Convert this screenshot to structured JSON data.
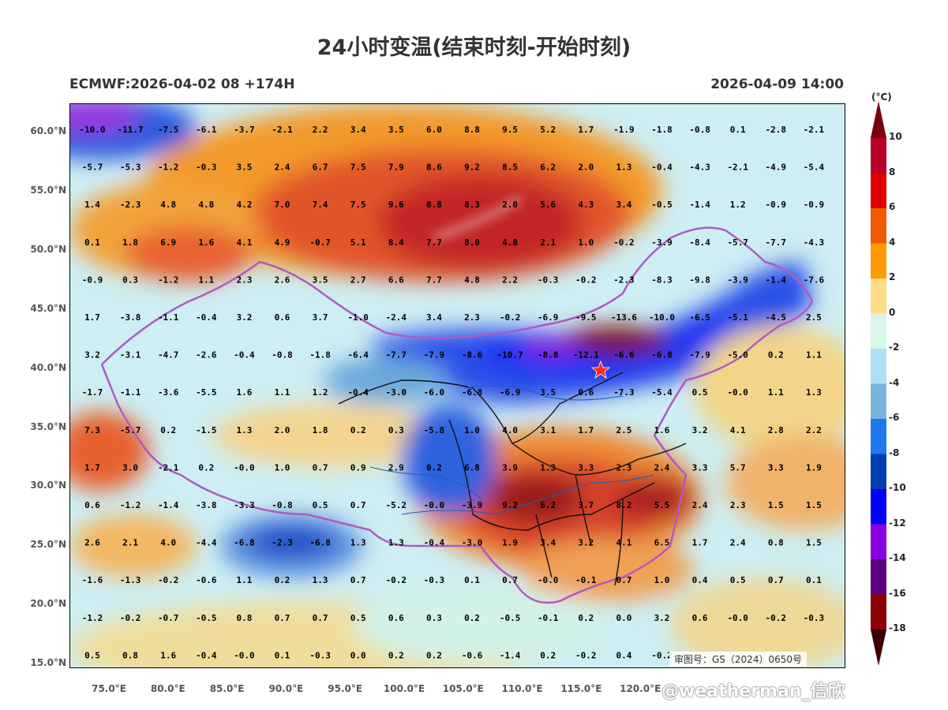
{
  "title": "24小时变温(结束时刻-开始时刻)",
  "subtitle_left": "ECMWF:2026-04-02 08 +174H",
  "subtitle_right": "2026-04-09 14:00",
  "approval_text": "审图号：GS（2024）0650号",
  "watermark": "@weatherman_信欣",
  "lat_labels": [
    "60.0°N",
    "55.0°N",
    "50.0°N",
    "45.0°N",
    "40.0°N",
    "35.0°N",
    "30.0°N",
    "25.0°N",
    "20.0°N",
    "15.0°N"
  ],
  "lon_labels": [
    "75.0°E",
    "80.0°E",
    "85.0°E",
    "90.0°E",
    "95.0°E",
    "100.0°E",
    "105.0°E",
    "110.0°E",
    "115.0°E",
    "120.0°E"
  ],
  "colorbar": {
    "unit": "(°C)",
    "ticks": [
      "10",
      "8",
      "6",
      "4",
      "2",
      "0",
      "-2",
      "-4",
      "-6",
      "-8",
      "-10",
      "-12",
      "-14",
      "-16",
      "-18"
    ],
    "colors": [
      "#b8002a",
      "#e00000",
      "#f05a00",
      "#ff9a00",
      "#ffdd88",
      "#d8f7ea",
      "#aee0f5",
      "#78b4de",
      "#1e78f0",
      "#0040b0",
      "#0000ff",
      "#8a00e0",
      "#5a0080",
      "#8c0000"
    ]
  },
  "grid_values": [
    [
      "-10.0",
      "-11.7",
      "-7.5",
      "-6.1",
      "-3.7",
      "-2.1",
      "2.2",
      "3.4",
      "3.5",
      "6.0",
      "8.8",
      "9.5",
      "5.2",
      "1.7",
      "-1.9",
      "-1.8",
      "-0.8",
      "0.1",
      "-2.8",
      "-2.1"
    ],
    [
      "-5.7",
      "-5.3",
      "-1.2",
      "-0.3",
      "3.5",
      "2.4",
      "6.7",
      "7.5",
      "7.9",
      "8.6",
      "9.2",
      "8.5",
      "6.2",
      "2.0",
      "1.3",
      "-0.4",
      "-4.3",
      "-2.1",
      "-4.9",
      "-5.4"
    ],
    [
      "1.4",
      "-2.3",
      "4.8",
      "4.8",
      "4.2",
      "7.0",
      "7.4",
      "7.5",
      "9.6",
      "8.8",
      "8.3",
      "2.0",
      "5.6",
      "4.3",
      "3.4",
      "-0.5",
      "-1.4",
      "1.2",
      "-0.9",
      "-0.9"
    ],
    [
      "0.1",
      "1.8",
      "6.9",
      "1.6",
      "4.1",
      "4.9",
      "-0.7",
      "5.1",
      "8.4",
      "7.7",
      "8.0",
      "4.8",
      "2.1",
      "1.0",
      "-0.2",
      "-3.9",
      "-8.4",
      "-5.7",
      "-7.7",
      "-4.3"
    ],
    [
      "-0.9",
      "0.3",
      "-1.2",
      "1.1",
      "2.3",
      "2.6",
      "3.5",
      "2.7",
      "6.6",
      "7.7",
      "4.8",
      "2.2",
      "-0.3",
      "-0.2",
      "-2.3",
      "-8.3",
      "-9.8",
      "-3.9",
      "-1.4",
      "-7.6"
    ],
    [
      "1.7",
      "-3.8",
      "-1.1",
      "-0.4",
      "3.2",
      "0.6",
      "3.7",
      "-1.0",
      "-2.4",
      "3.4",
      "2.3",
      "-0.2",
      "-6.9",
      "-9.5",
      "-13.6",
      "-10.0",
      "-6.5",
      "-5.1",
      "-4.5",
      "2.5"
    ],
    [
      "3.2",
      "-3.1",
      "-4.7",
      "-2.6",
      "-0.4",
      "-0.8",
      "-1.8",
      "-6.4",
      "-7.7",
      "-7.9",
      "-8.6",
      "-10.7",
      "-8.8",
      "-12.1",
      "-6.6",
      "-6.8",
      "-7.9",
      "-5.0",
      "0.2",
      "1.1"
    ],
    [
      "-1.7",
      "-1.1",
      "-3.6",
      "-5.5",
      "1.6",
      "1.1",
      "1.2",
      "-0.4",
      "-3.0",
      "-6.0",
      "-6.8",
      "-6.9",
      "3.5",
      "0.6",
      "-7.3",
      "-5.4",
      "0.5",
      "-0.0",
      "1.1",
      "1.3"
    ],
    [
      "7.3",
      "-5.7",
      "0.2",
      "-1.5",
      "1.3",
      "2.0",
      "1.8",
      "0.2",
      "0.3",
      "-5.8",
      "1.0",
      "4.0",
      "3.1",
      "1.7",
      "2.5",
      "1.6",
      "3.2",
      "4.1",
      "2.8",
      "2.2"
    ],
    [
      "1.7",
      "3.0",
      "-2.1",
      "0.2",
      "-0.0",
      "1.0",
      "0.7",
      "0.9",
      "2.9",
      "0.2",
      "6.8",
      "3.9",
      "1.3",
      "3.3",
      "2.3",
      "2.4",
      "3.3",
      "5.7",
      "3.3",
      "1.9"
    ],
    [
      "0.6",
      "-1.2",
      "-1.4",
      "-3.8",
      "-3.3",
      "-0.8",
      "0.5",
      "0.7",
      "-5.2",
      "-0.0",
      "-3.9",
      "9.2",
      "6.2",
      "3.7",
      "8.2",
      "5.5",
      "2.4",
      "2.3",
      "1.5",
      "1.5"
    ],
    [
      "2.6",
      "2.1",
      "4.0",
      "-4.4",
      "-6.8",
      "-2.3",
      "-6.8",
      "1.3",
      "1.3",
      "-0.4",
      "-3.0",
      "1.9",
      "3.4",
      "3.2",
      "4.1",
      "6.5",
      "1.7",
      "2.4",
      "0.8",
      "1.5"
    ],
    [
      "-1.6",
      "-1.3",
      "-0.2",
      "-0.6",
      "1.1",
      "0.2",
      "1.3",
      "0.7",
      "-0.2",
      "-0.3",
      "0.1",
      "0.7",
      "-0.0",
      "-0.1",
      "0.7",
      "1.0",
      "0.4",
      "0.5",
      "0.7",
      "0.1"
    ],
    [
      "-1.2",
      "-0.2",
      "-0.7",
      "-0.5",
      "0.8",
      "0.7",
      "0.7",
      "0.5",
      "0.6",
      "0.3",
      "0.2",
      "-0.5",
      "-0.1",
      "0.2",
      "0.0",
      "3.2",
      "0.6",
      "-0.0",
      "-0.2",
      "-0.3"
    ],
    [
      "0.5",
      "0.8",
      "1.6",
      "-0.4",
      "-0.0",
      "0.1",
      "-0.3",
      "0.0",
      "0.2",
      "0.2",
      "-0.6",
      "-1.4",
      "0.2",
      "-0.2",
      "0.4",
      "-0.2",
      "",
      "",
      "",
      ""
    ]
  ],
  "marker": "star"
}
